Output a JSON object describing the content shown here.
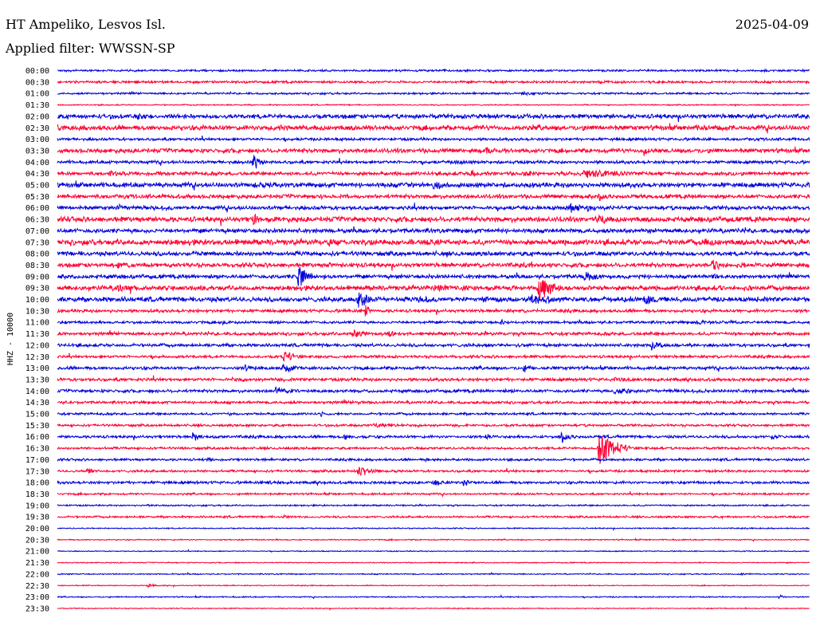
{
  "header": {
    "station": "HT Ampeliko, Lesvos Isl.",
    "date": "2025-04-09",
    "filter": "Applied filter: WWSSN-SP"
  },
  "colors": {
    "odd_trace": "#0000dc",
    "even_trace": "#ff0033"
  },
  "chart_data": {
    "type": "line",
    "title": "HT Ampeliko, Lesvos Isl.",
    "subtitle": "Applied filter: WWSSN-SP",
    "ylabel": "HHZ - 10000",
    "xlabel": "",
    "series_colors": [
      "#0000dc",
      "#ff0033"
    ],
    "row_labels": [
      "00:00",
      "00:30",
      "01:00",
      "01:30",
      "02:00",
      "02:30",
      "03:00",
      "03:30",
      "04:00",
      "04:30",
      "05:00",
      "05:30",
      "06:00",
      "06:30",
      "07:00",
      "07:30",
      "08:00",
      "08:30",
      "09:00",
      "09:30",
      "10:00",
      "10:30",
      "11:00",
      "11:30",
      "12:00",
      "12:30",
      "13:00",
      "13:30",
      "14:00",
      "14:30",
      "15:00",
      "15:30",
      "16:00",
      "16:30",
      "17:00",
      "17:30",
      "18:00",
      "18:30",
      "19:00",
      "19:30",
      "20:00",
      "20:30",
      "21:00",
      "21:30",
      "22:00",
      "22:30",
      "23:00",
      "23:30"
    ],
    "noise_level": [
      1,
      1.2,
      1,
      0.6,
      2.2,
      2.5,
      1.4,
      2.2,
      1.6,
      1.8,
      2.4,
      2,
      2,
      2.6,
      2.2,
      2.8,
      2.2,
      2.2,
      2,
      2.4,
      2.4,
      1.6,
      1.4,
      1.6,
      1.6,
      1.4,
      1.6,
      1.6,
      1.6,
      1.4,
      1.2,
      1.2,
      1.4,
      1.2,
      1.2,
      1.2,
      1.4,
      1,
      0.8,
      1,
      0.6,
      0.6,
      0.5,
      0.5,
      0.6,
      0.5,
      0.6,
      0.5
    ],
    "events": [
      {
        "row": 0,
        "t": 0.94,
        "amp": 2,
        "dur": 0.008
      },
      {
        "row": 1,
        "t": 0.38,
        "amp": 2,
        "dur": 0.02
      },
      {
        "row": 1,
        "t": 0.72,
        "amp": 2.5,
        "dur": 0.04
      },
      {
        "row": 2,
        "t": 0.62,
        "amp": 3,
        "dur": 0.02
      },
      {
        "row": 2,
        "t": 0.84,
        "amp": 2,
        "dur": 0.01
      },
      {
        "row": 4,
        "t": 0.107,
        "amp": 6,
        "dur": 0.012
      },
      {
        "row": 4,
        "t": 0.55,
        "amp": 3,
        "dur": 0.02
      },
      {
        "row": 5,
        "t": 0.28,
        "amp": 4,
        "dur": 0.03
      },
      {
        "row": 5,
        "t": 0.85,
        "amp": 4,
        "dur": 0.02
      },
      {
        "row": 7,
        "t": 0.57,
        "amp": 7,
        "dur": 0.006
      },
      {
        "row": 7,
        "t": 0.78,
        "amp": 8,
        "dur": 0.01
      },
      {
        "row": 8,
        "t": 0.26,
        "amp": 16,
        "dur": 0.008
      },
      {
        "row": 8,
        "t": 0.53,
        "amp": 4,
        "dur": 0.02
      },
      {
        "row": 9,
        "t": 0.07,
        "amp": 5,
        "dur": 0.02
      },
      {
        "row": 9,
        "t": 0.55,
        "amp": 8,
        "dur": 0.008
      },
      {
        "row": 9,
        "t": 0.62,
        "amp": 6,
        "dur": 0.02
      },
      {
        "row": 9,
        "t": 0.7,
        "amp": 8,
        "dur": 0.05
      },
      {
        "row": 10,
        "t": 0.26,
        "amp": 6,
        "dur": 0.01
      },
      {
        "row": 10,
        "t": 0.46,
        "amp": 6,
        "dur": 0.015
      },
      {
        "row": 10,
        "t": 0.5,
        "amp": 7,
        "dur": 0.03
      },
      {
        "row": 11,
        "t": 0.35,
        "amp": 4,
        "dur": 0.02
      },
      {
        "row": 11,
        "t": 0.72,
        "amp": 6,
        "dur": 0.02
      },
      {
        "row": 11,
        "t": 0.997,
        "amp": 8,
        "dur": 0.004
      },
      {
        "row": 12,
        "t": 0.08,
        "amp": 5,
        "dur": 0.03
      },
      {
        "row": 12,
        "t": 0.68,
        "amp": 8,
        "dur": 0.02
      },
      {
        "row": 12,
        "t": 0.705,
        "amp": 9,
        "dur": 0.008
      },
      {
        "row": 13,
        "t": 0.26,
        "amp": 10,
        "dur": 0.01
      },
      {
        "row": 13,
        "t": 0.72,
        "amp": 8,
        "dur": 0.02
      },
      {
        "row": 14,
        "t": 0.75,
        "amp": 4,
        "dur": 0.01
      },
      {
        "row": 15,
        "t": 0.36,
        "amp": 6,
        "dur": 0.04
      },
      {
        "row": 15,
        "t": 0.86,
        "amp": 6,
        "dur": 0.03
      },
      {
        "row": 16,
        "t": 0.18,
        "amp": 5,
        "dur": 0.01
      },
      {
        "row": 17,
        "t": 0.08,
        "amp": 5,
        "dur": 0.02
      },
      {
        "row": 17,
        "t": 0.36,
        "amp": 5,
        "dur": 0.01
      },
      {
        "row": 17,
        "t": 0.63,
        "amp": 6,
        "dur": 0.006
      },
      {
        "row": 17,
        "t": 0.87,
        "amp": 9,
        "dur": 0.02
      },
      {
        "row": 18,
        "t": 0.32,
        "amp": 18,
        "dur": 0.012
      },
      {
        "row": 18,
        "t": 0.7,
        "amp": 8,
        "dur": 0.02
      },
      {
        "row": 18,
        "t": 0.87,
        "amp": 6,
        "dur": 0.01
      },
      {
        "row": 19,
        "t": 0.08,
        "amp": 6,
        "dur": 0.03
      },
      {
        "row": 19,
        "t": 0.5,
        "amp": 6,
        "dur": 0.04
      },
      {
        "row": 19,
        "t": 0.64,
        "amp": 18,
        "dur": 0.02
      },
      {
        "row": 19,
        "t": 0.88,
        "amp": 5,
        "dur": 0.01
      },
      {
        "row": 20,
        "t": 0.4,
        "amp": 20,
        "dur": 0.012
      },
      {
        "row": 20,
        "t": 0.48,
        "amp": 6,
        "dur": 0.03
      },
      {
        "row": 20,
        "t": 0.63,
        "amp": 8,
        "dur": 0.04
      },
      {
        "row": 20,
        "t": 0.78,
        "amp": 9,
        "dur": 0.02
      },
      {
        "row": 21,
        "t": 0.41,
        "amp": 14,
        "dur": 0.004
      },
      {
        "row": 22,
        "t": 0.22,
        "amp": 4,
        "dur": 0.01
      },
      {
        "row": 22,
        "t": 0.59,
        "amp": 4,
        "dur": 0.01
      },
      {
        "row": 22,
        "t": 0.85,
        "amp": 4,
        "dur": 0.02
      },
      {
        "row": 23,
        "t": 0.39,
        "amp": 8,
        "dur": 0.02
      },
      {
        "row": 23,
        "t": 0.44,
        "amp": 6,
        "dur": 0.01
      },
      {
        "row": 24,
        "t": 0.57,
        "amp": 4,
        "dur": 0.015
      },
      {
        "row": 24,
        "t": 0.79,
        "amp": 8,
        "dur": 0.015
      },
      {
        "row": 24,
        "t": 0.998,
        "amp": 6,
        "dur": 0.004
      },
      {
        "row": 25,
        "t": 0.3,
        "amp": 9,
        "dur": 0.02
      },
      {
        "row": 25,
        "t": 0.14,
        "amp": 5,
        "dur": 0.006
      },
      {
        "row": 26,
        "t": 0.25,
        "amp": 6,
        "dur": 0.02
      },
      {
        "row": 26,
        "t": 0.3,
        "amp": 8,
        "dur": 0.02
      },
      {
        "row": 26,
        "t": 0.62,
        "amp": 8,
        "dur": 0.01
      },
      {
        "row": 27,
        "t": 0.23,
        "amp": 4,
        "dur": 0.02
      },
      {
        "row": 27,
        "t": 0.74,
        "amp": 4,
        "dur": 0.03
      },
      {
        "row": 28,
        "t": 0.29,
        "amp": 6,
        "dur": 0.03
      },
      {
        "row": 28,
        "t": 0.74,
        "amp": 6,
        "dur": 0.03
      },
      {
        "row": 29,
        "t": 0.4,
        "amp": 4,
        "dur": 0.01
      },
      {
        "row": 30,
        "t": 0.23,
        "amp": 4,
        "dur": 0.008
      },
      {
        "row": 30,
        "t": 0.35,
        "amp": 4,
        "dur": 0.008
      },
      {
        "row": 31,
        "t": 0.42,
        "amp": 4,
        "dur": 0.04
      },
      {
        "row": 32,
        "t": 0.18,
        "amp": 8,
        "dur": 0.012
      },
      {
        "row": 32,
        "t": 0.38,
        "amp": 6,
        "dur": 0.01
      },
      {
        "row": 32,
        "t": 0.57,
        "amp": 6,
        "dur": 0.008
      },
      {
        "row": 32,
        "t": 0.67,
        "amp": 8,
        "dur": 0.015
      },
      {
        "row": 32,
        "t": 0.95,
        "amp": 6,
        "dur": 0.008
      },
      {
        "row": 33,
        "t": 0.72,
        "amp": 28,
        "dur": 0.02
      },
      {
        "row": 34,
        "t": 0.2,
        "amp": 4,
        "dur": 0.008
      },
      {
        "row": 34,
        "t": 0.49,
        "amp": 4,
        "dur": 0.006
      },
      {
        "row": 35,
        "t": 0.04,
        "amp": 6,
        "dur": 0.01
      },
      {
        "row": 35,
        "t": 0.4,
        "amp": 10,
        "dur": 0.015
      },
      {
        "row": 36,
        "t": 0.28,
        "amp": 3,
        "dur": 0.02
      },
      {
        "row": 36,
        "t": 0.5,
        "amp": 6,
        "dur": 0.01
      },
      {
        "row": 36,
        "t": 0.54,
        "amp": 7,
        "dur": 0.008
      },
      {
        "row": 38,
        "t": 0.12,
        "amp": 4,
        "dur": 0.004
      },
      {
        "row": 39,
        "t": 0.3,
        "amp": 4,
        "dur": 0.01
      },
      {
        "row": 44,
        "t": 0.91,
        "amp": 3,
        "dur": 0.004
      },
      {
        "row": 45,
        "t": 0.12,
        "amp": 4,
        "dur": 0.008
      },
      {
        "row": 46,
        "t": 0.96,
        "amp": 4,
        "dur": 0.006
      }
    ]
  }
}
